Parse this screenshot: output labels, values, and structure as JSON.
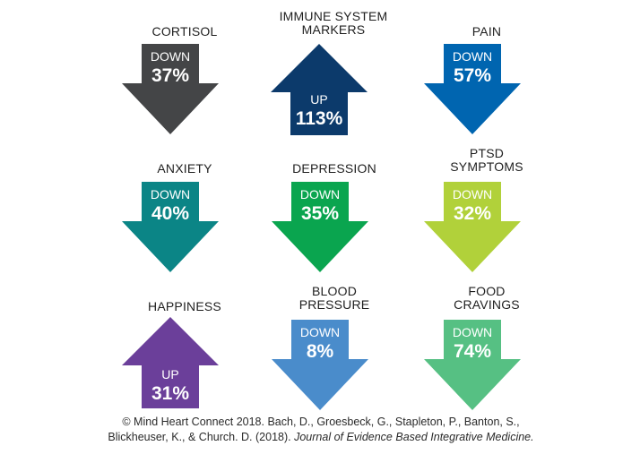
{
  "items": [
    {
      "label_lines": [
        "CORTISOL"
      ],
      "direction": "DOWN",
      "percent": "37%",
      "color": "#444547"
    },
    {
      "label_lines": [
        "IMMUNE SYSTEM",
        "MARKERS"
      ],
      "direction": "UP",
      "percent": "113%",
      "color": "#0c3a6b"
    },
    {
      "label_lines": [
        "PAIN"
      ],
      "direction": "DOWN",
      "percent": "57%",
      "color": "#0065b0"
    },
    {
      "label_lines": [
        "ANXIETY"
      ],
      "direction": "DOWN",
      "percent": "40%",
      "color": "#0b8586"
    },
    {
      "label_lines": [
        "DEPRESSION"
      ],
      "direction": "DOWN",
      "percent": "35%",
      "color": "#0aa54f"
    },
    {
      "label_lines": [
        "PTSD",
        "SYMPTOMS"
      ],
      "direction": "DOWN",
      "percent": "32%",
      "color": "#b1d13a"
    },
    {
      "label_lines": [
        "HAPPINESS"
      ],
      "direction": "UP",
      "percent": "31%",
      "color": "#6b3f9a"
    },
    {
      "label_lines": [
        "BLOOD",
        "PRESSURE"
      ],
      "direction": "DOWN",
      "percent": "8%",
      "color": "#4a8ccb"
    },
    {
      "label_lines": [
        "FOOD",
        "CRAVINGS"
      ],
      "direction": "DOWN",
      "percent": "74%",
      "color": "#56c083"
    }
  ],
  "footer": {
    "line1": "© Mind Heart Connect 2018. Bach, D., Groesbeck, G., Stapleton, P., Banton, S.,",
    "line2_prefix": "Blickheuser, K., & Church. D. (2018). ",
    "line2_journal": "Journal of Evidence Based Integrative Medicine."
  }
}
